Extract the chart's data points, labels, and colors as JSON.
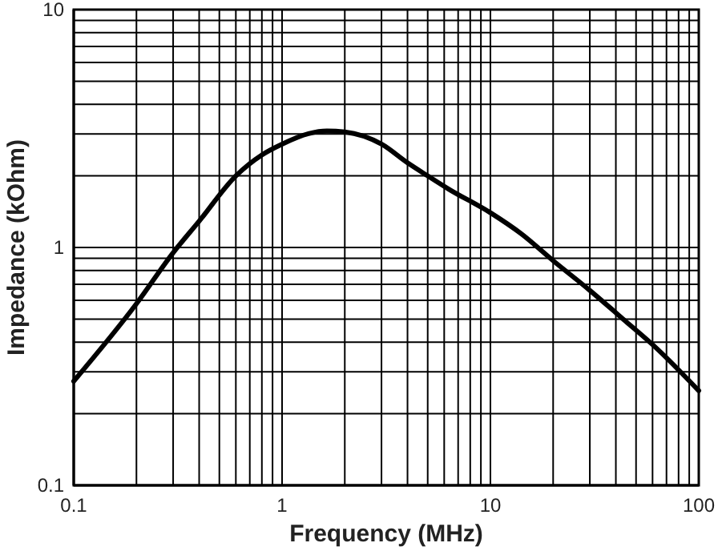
{
  "chart_data": {
    "type": "line",
    "xlabel": "Frequency (MHz)",
    "ylabel": "Impedance (kOhm)",
    "log": "xy",
    "grid": true,
    "marker": "none",
    "line_style": "solid",
    "xlim": [
      0.1,
      100
    ],
    "ylim": [
      0.1,
      10
    ],
    "xticks": [
      0.1,
      {
        "value": 0.2,
        "label": null
      },
      {
        "value": 0.3,
        "label": null
      },
      {
        "value": 0.4,
        "label": null
      },
      {
        "value": 0.5,
        "label": null
      },
      {
        "value": 0.6,
        "label": null
      },
      {
        "value": 0.7,
        "label": null
      },
      {
        "value": 0.8,
        "label": null
      },
      {
        "value": 0.9,
        "label": null
      },
      1,
      {
        "value": 2,
        "label": null
      },
      {
        "value": 3,
        "label": null
      },
      {
        "value": 4,
        "label": null
      },
      {
        "value": 5,
        "label": null
      },
      {
        "value": 6,
        "label": null
      },
      {
        "value": 7,
        "label": null
      },
      {
        "value": 8,
        "label": null
      },
      {
        "value": 9,
        "label": null
      },
      10,
      {
        "value": 20,
        "label": null
      },
      {
        "value": 30,
        "label": null
      },
      {
        "value": 40,
        "label": null
      },
      {
        "value": 50,
        "label": null
      },
      {
        "value": 60,
        "label": null
      },
      {
        "value": 70,
        "label": null
      },
      {
        "value": 80,
        "label": null
      },
      {
        "value": 90,
        "label": null
      },
      100
    ],
    "yticks": [
      0.1,
      {
        "value": 0.2,
        "label": null
      },
      {
        "value": 0.3,
        "label": null
      },
      {
        "value": 0.4,
        "label": null
      },
      {
        "value": 0.5,
        "label": null
      },
      {
        "value": 0.6,
        "label": null
      },
      {
        "value": 0.7,
        "label": null
      },
      {
        "value": 0.8,
        "label": null
      },
      {
        "value": 0.9,
        "label": null
      },
      1,
      {
        "value": 2,
        "label": null
      },
      {
        "value": 3,
        "label": null
      },
      {
        "value": 4,
        "label": null
      },
      {
        "value": 5,
        "label": null
      },
      {
        "value": 6,
        "label": null
      },
      {
        "value": 7,
        "label": null
      },
      {
        "value": 8,
        "label": null
      },
      {
        "value": 9,
        "label": null
      },
      10
    ],
    "series": [
      {
        "color": "#000000",
        "x": [
          0.1,
          0.2,
          0.3,
          0.4,
          0.6,
          0.8,
          1,
          1.34,
          1.64,
          2,
          3,
          4,
          5,
          6.3,
          10,
          14.1,
          20,
          30,
          44.5,
          62.7,
          100
        ],
        "values": [
          0.274,
          0.58,
          0.95,
          1.29,
          2.0,
          2.45,
          2.72,
          3.01,
          3.09,
          3.06,
          2.72,
          2.27,
          2.0,
          1.76,
          1.4,
          1.14,
          0.88,
          0.66,
          0.49,
          0.377,
          0.25
        ]
      }
    ]
  }
}
